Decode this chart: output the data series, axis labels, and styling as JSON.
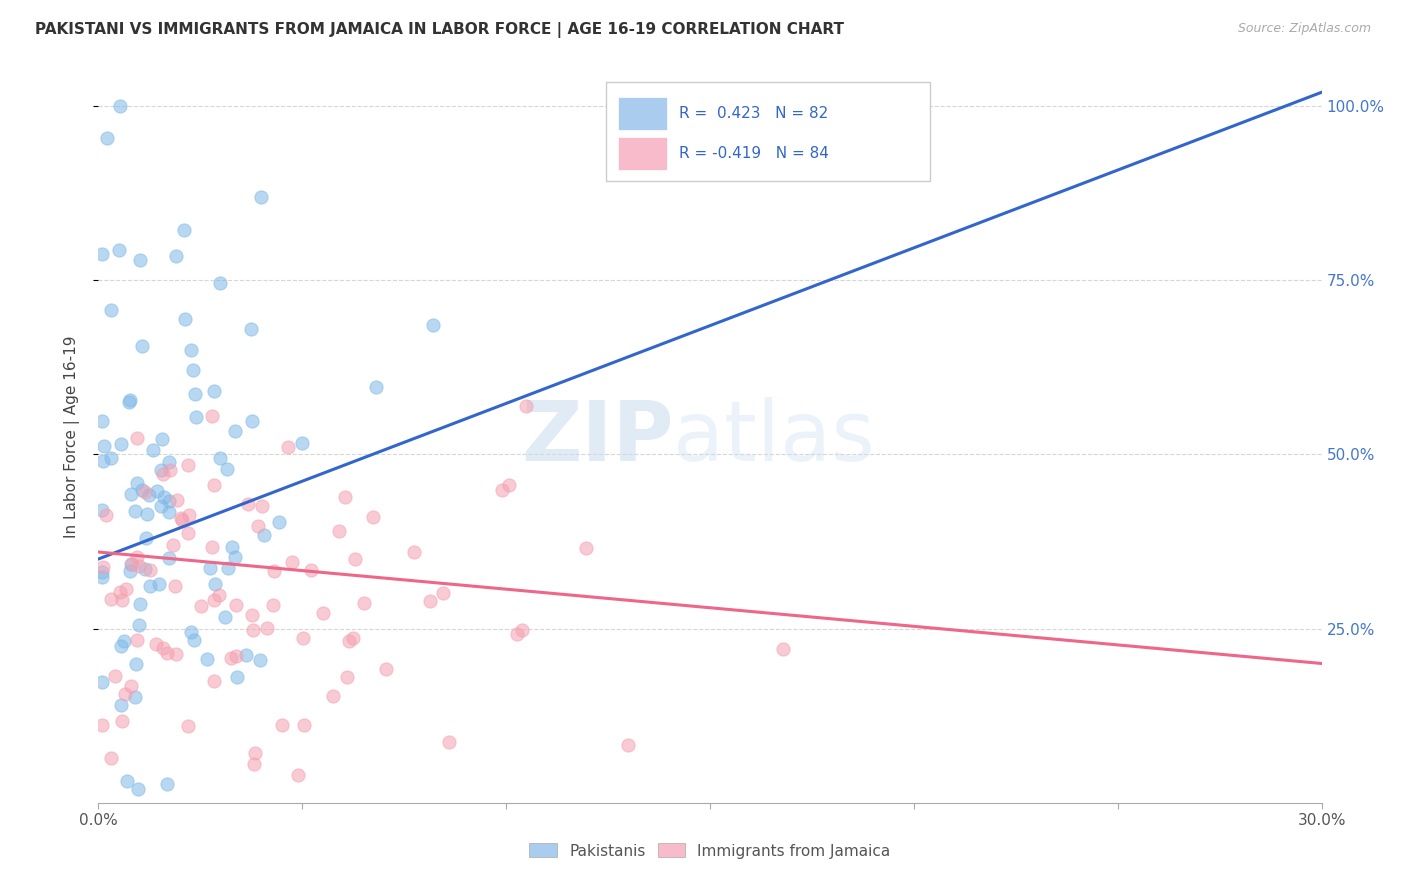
{
  "title": "PAKISTANI VS IMMIGRANTS FROM JAMAICA IN LABOR FORCE | AGE 16-19 CORRELATION CHART",
  "source": "Source: ZipAtlas.com",
  "ylabel": "In Labor Force | Age 16-19",
  "x_min": 0.0,
  "x_max": 0.3,
  "y_min": 0.0,
  "y_max": 1.05,
  "r_blue": 0.423,
  "n_blue": 82,
  "r_pink": -0.419,
  "n_pink": 84,
  "blue_color": "#7EB8E8",
  "pink_color": "#F4A0B0",
  "trend_blue_color": "#3366CC",
  "trend_pink_color": "#EE6688",
  "legend_blue_fill": "#AACCEE",
  "legend_pink_fill": "#F8BBCC",
  "blue_line_x0": 0.0,
  "blue_line_y0": 0.35,
  "blue_line_x1": 0.3,
  "blue_line_y1": 1.02,
  "pink_line_x0": 0.0,
  "pink_line_y0": 0.36,
  "pink_line_x1": 0.3,
  "pink_line_y1": 0.2,
  "grid_color": "#CCCCCC",
  "watermark_zip_color": "#C8DCF0",
  "watermark_atlas_color": "#C8DCF0"
}
